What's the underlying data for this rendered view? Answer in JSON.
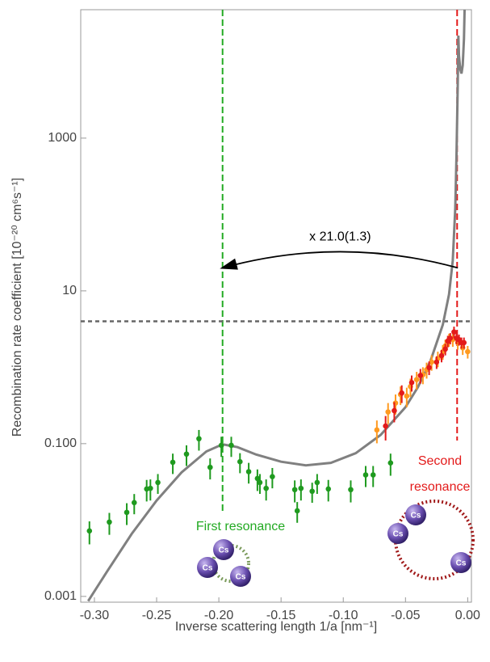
{
  "chart_data": {
    "type": "scatter",
    "x_label": "Inverse scattering length 1/a  [nm⁻¹]",
    "y_label": "Recombination rate coefficient [10⁻²⁰ cm⁶s⁻¹]",
    "log_y": true,
    "xlim": [
      -0.311,
      0.003
    ],
    "ylim": [
      0.00084,
      48000
    ],
    "xticks": [
      {
        "value": -0.3,
        "label": "-0.30"
      },
      {
        "value": -0.25,
        "label": "-0.25"
      },
      {
        "value": -0.2,
        "label": "-0.20"
      },
      {
        "value": -0.15,
        "label": "-0.15"
      },
      {
        "value": -0.1,
        "label": "-0.10"
      },
      {
        "value": -0.05,
        "label": "-0.05"
      },
      {
        "value": 0,
        "label": "0.00"
      }
    ],
    "yticks": [
      0.001,
      {
        "value": 0.1,
        "label": "0.100"
      },
      10,
      1000
    ],
    "series": [
      {
        "style": "line",
        "color": "#808080",
        "x": [
          -0.305,
          -0.29,
          -0.27,
          -0.25,
          -0.23,
          -0.21,
          -0.197,
          -0.185,
          -0.17,
          -0.15,
          -0.13,
          -0.11,
          -0.09,
          -0.07,
          -0.05,
          -0.04,
          -0.03,
          -0.02,
          -0.015,
          -0.012,
          -0.01,
          -0.009,
          -0.008,
          -0.0075,
          -0.007,
          -0.006,
          -0.005,
          -0.004,
          -0.003,
          -0.0025
        ],
        "values": [
          0.00087,
          0.0021,
          0.0066,
          0.018,
          0.042,
          0.079,
          0.098,
          0.09,
          0.072,
          0.058,
          0.052,
          0.056,
          0.075,
          0.13,
          0.3,
          0.55,
          1.2,
          3.6,
          9,
          25,
          120,
          600,
          5000,
          22000,
          12000,
          8000,
          7000,
          9000,
          20000,
          48000
        ]
      },
      {
        "style": "points",
        "color": "#1f9a1f",
        "x": [
          -0.304,
          -0.288,
          -0.274,
          -0.268,
          -0.258,
          -0.255,
          -0.249,
          -0.237,
          -0.226,
          -0.216,
          -0.207,
          -0.198,
          -0.19,
          -0.183,
          -0.176,
          -0.169,
          -0.167,
          -0.162,
          -0.157,
          -0.139,
          -0.137,
          -0.134,
          -0.125,
          -0.121,
          -0.112,
          -0.094,
          -0.082,
          -0.076,
          -0.062
        ],
        "values": [
          0.0072,
          0.0094,
          0.0126,
          0.0169,
          0.0255,
          0.026,
          0.031,
          0.057,
          0.073,
          0.116,
          0.049,
          0.095,
          0.095,
          0.058,
          0.043,
          0.035,
          0.031,
          0.026,
          0.037,
          0.025,
          0.0132,
          0.026,
          0.0238,
          0.031,
          0.0255,
          0.025,
          0.039,
          0.039,
          0.056
        ],
        "errors": [
          0.0024,
          0.003,
          0.004,
          0.005,
          0.008,
          0.008,
          0.009,
          0.017,
          0.022,
          0.035,
          0.015,
          0.028,
          0.028,
          0.017,
          0.013,
          0.011,
          0.009,
          0.008,
          0.011,
          0.008,
          0.004,
          0.008,
          0.007,
          0.009,
          0.008,
          0.008,
          0.012,
          0.012,
          0.018
        ]
      },
      {
        "style": "points",
        "color": "#ff9a1f",
        "x": [
          -0.073,
          -0.064,
          -0.058,
          -0.054,
          -0.049,
          -0.046,
          -0.041,
          -0.036,
          -0.033,
          -0.029,
          -0.024,
          -0.02,
          -0.018,
          -0.015,
          -0.012,
          -0.008,
          -0.004,
          0
        ],
        "values": [
          0.151,
          0.26,
          0.34,
          0.44,
          0.42,
          0.56,
          0.69,
          0.8,
          0.93,
          1.17,
          1.3,
          1.6,
          1.9,
          2.3,
          2.3,
          2.1,
          1.8,
          1.6
        ],
        "errors": [
          0.05,
          0.08,
          0.1,
          0.12,
          0.12,
          0.15,
          0.18,
          0.2,
          0.22,
          0.27,
          0.3,
          0.35,
          0.4,
          0.45,
          0.45,
          0.4,
          0.35,
          0.3
        ]
      },
      {
        "style": "points",
        "color": "#e31a1a",
        "x": [
          -0.066,
          -0.059,
          -0.053,
          -0.045,
          -0.038,
          -0.031,
          -0.025,
          -0.021,
          -0.018,
          -0.016,
          -0.014,
          -0.011,
          -0.009,
          -0.007,
          -0.005,
          -0.003
        ],
        "values": [
          0.17,
          0.27,
          0.46,
          0.63,
          0.78,
          0.99,
          1.17,
          1.42,
          1.73,
          2.2,
          2.4,
          2.9,
          2.4,
          2.3,
          2.1,
          2.1
        ],
        "errors": [
          0.06,
          0.08,
          0.12,
          0.15,
          0.17,
          0.2,
          0.22,
          0.26,
          0.3,
          0.38,
          0.4,
          0.5,
          0.4,
          0.38,
          0.35,
          0.35
        ]
      }
    ],
    "vlines": [
      {
        "x": -0.197,
        "y_min": 0.013,
        "color": "#22aa22"
      },
      {
        "x": -0.0085,
        "y_min": 0.11,
        "color": "#e31a1a"
      }
    ],
    "hline": {
      "y": 4,
      "color": "#666666"
    },
    "arrow": {
      "text": "x 21.0(1.3)",
      "x_from": -0.008,
      "x_to": -0.197,
      "y": 20
    },
    "annotations": [
      "First resonance",
      "Second",
      "resonance"
    ],
    "atom_label": "Cs"
  }
}
